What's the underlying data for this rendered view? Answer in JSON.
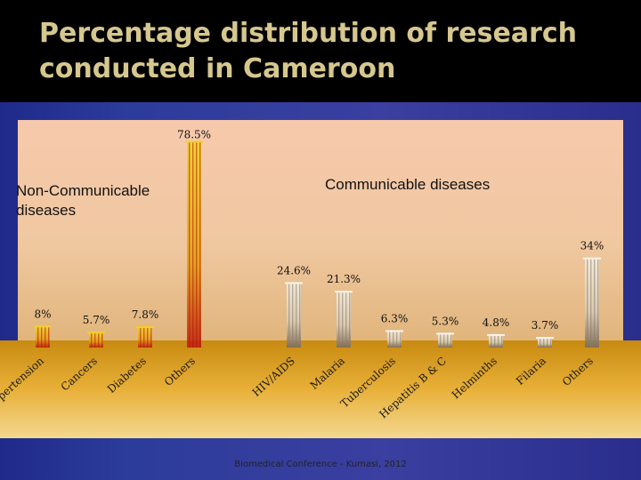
{
  "slide": {
    "title": "Percentage distribution of research conducted in Cameroon",
    "footer": "Biomedical Conference - Kumasi, 2012"
  },
  "colors": {
    "background": "#2c3c9a",
    "plot_top": "#f6c9ac",
    "plot_floor": "#c88a10",
    "ncd_bars": "#e8c020",
    "cd_bars": "#e8ddc8"
  },
  "chart_data": {
    "type": "bar",
    "group_labels": [
      "Non-Communicable diseases",
      "Communicable diseases"
    ],
    "categories": [
      "Hypertension",
      "Cancers",
      "Diabetes",
      "Others",
      "HIV/AIDS",
      "Malaria",
      "Tuberculosis",
      "Hepatitis B & C",
      "Helminths",
      "Filaria",
      "Others"
    ],
    "groups": [
      "Non-Communicable diseases",
      "Non-Communicable diseases",
      "Non-Communicable diseases",
      "Non-Communicable diseases",
      "Communicable diseases",
      "Communicable diseases",
      "Communicable diseases",
      "Communicable diseases",
      "Communicable diseases",
      "Communicable diseases",
      "Communicable diseases"
    ],
    "values": [
      8,
      5.7,
      7.8,
      78.5,
      24.6,
      21.3,
      6.3,
      5.3,
      4.8,
      3.7,
      34
    ],
    "value_labels": [
      "8%",
      "5.7%",
      "7.8%",
      "78.5%",
      "24.6%",
      "21.3%",
      "6.3%",
      "5.3%",
      "4.8%",
      "3.7%",
      "34%"
    ],
    "ylim": [
      0,
      80
    ],
    "grid": false,
    "legend": "none"
  }
}
